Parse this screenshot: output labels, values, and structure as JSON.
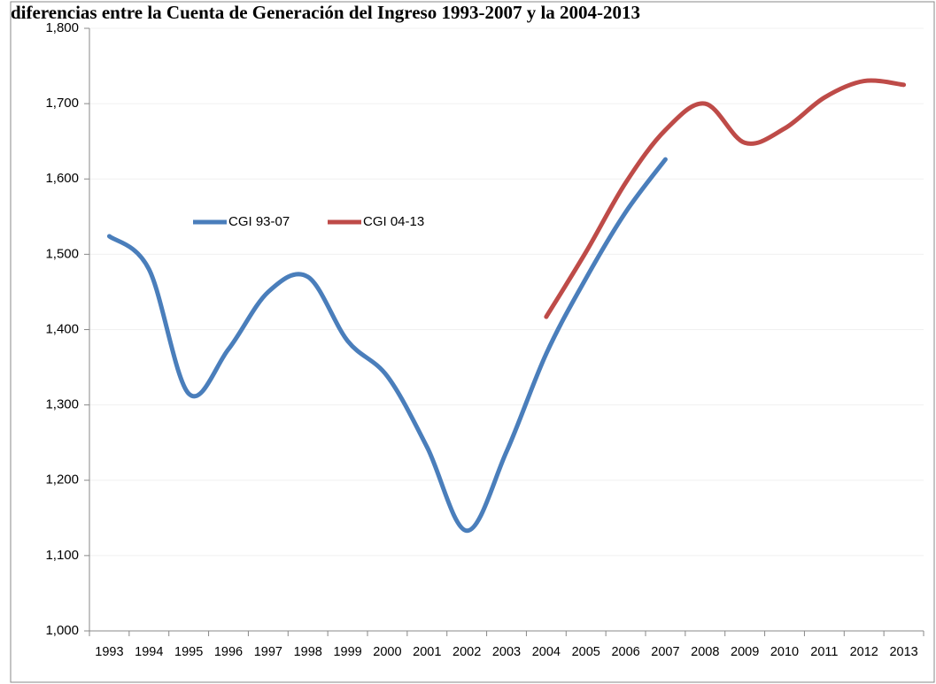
{
  "chart_data": {
    "type": "line",
    "title": "diferencias entre la Cuenta de Generación del Ingreso 1993-2007 y la 2004-2013",
    "categories": [
      "1993",
      "1994",
      "1995",
      "1996",
      "1997",
      "1998",
      "1999",
      "2000",
      "2001",
      "2002",
      "2003",
      "2004",
      "2005",
      "2006",
      "2007",
      "2008",
      "2009",
      "2010",
      "2011",
      "2012",
      "2013"
    ],
    "series": [
      {
        "name": "CGI 93-07",
        "color": "#4a7ebb",
        "values": [
          1524,
          1480,
          1315,
          1374,
          1450,
          1470,
          1385,
          1338,
          1244,
          1133,
          1238,
          1368,
          1468,
          1556,
          1626,
          null,
          null,
          null,
          null,
          null,
          null
        ]
      },
      {
        "name": "CGI 04-13",
        "color": "#be4b48",
        "values": [
          null,
          null,
          null,
          null,
          null,
          null,
          null,
          null,
          null,
          null,
          null,
          1417,
          1503,
          1595,
          1665,
          1700,
          1648,
          1667,
          1708,
          1730,
          1725
        ]
      }
    ],
    "ylim": [
      1000,
      1800
    ],
    "yticks": [
      {
        "value": 1000,
        "label": "1,000"
      },
      {
        "value": 1100,
        "label": "1,100"
      },
      {
        "value": 1200,
        "label": "1,200"
      },
      {
        "value": 1300,
        "label": "1,300"
      },
      {
        "value": 1400,
        "label": "1,400"
      },
      {
        "value": 1500,
        "label": "1,500"
      },
      {
        "value": 1600,
        "label": "1,600"
      },
      {
        "value": 1700,
        "label": "1,700"
      },
      {
        "value": 1800,
        "label": "1,800"
      }
    ],
    "grid": true
  }
}
